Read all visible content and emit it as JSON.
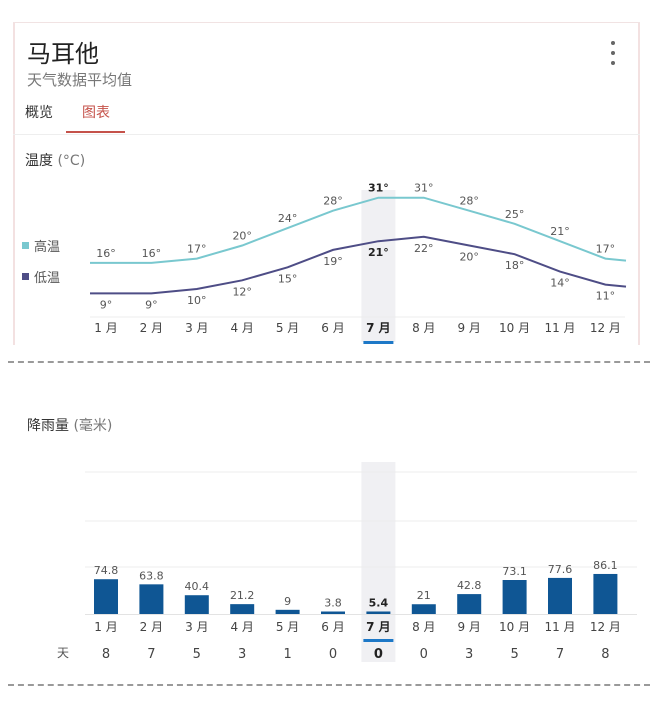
{
  "header": {
    "title": "马耳他",
    "subtitle": "天气数据平均值"
  },
  "tabs": [
    {
      "label": "概览",
      "active": false
    },
    {
      "label": "图表",
      "active": true
    }
  ],
  "temperature": {
    "label": "温度",
    "unit": "(°C)",
    "legend": [
      {
        "label": "高温",
        "color": "#79c8cf"
      },
      {
        "label": "低温",
        "color": "#4e4d86"
      }
    ]
  },
  "rainfall": {
    "label": "降雨量",
    "unit": "(毫米)",
    "days_label": "天"
  },
  "months": [
    "1 月",
    "2 月",
    "3 月",
    "4 月",
    "5 月",
    "6 月",
    "7 月",
    "8 月",
    "9 月",
    "10 月",
    "11 月",
    "12 月"
  ],
  "selected_month_index": 6,
  "colors": {
    "high_line": "#79c8cf",
    "low_line": "#4e4d86",
    "bar": "#0f5694",
    "accent": "#c5524a",
    "selection": "#1d78c7"
  },
  "chart_data": [
    {
      "type": "line",
      "categories": [
        "1 月",
        "2 月",
        "3 月",
        "4 月",
        "5 月",
        "6 月",
        "7 月",
        "8 月",
        "9 月",
        "10 月",
        "11 月",
        "12 月"
      ],
      "series": [
        {
          "name": "高温",
          "values": [
            16,
            16,
            17,
            20,
            24,
            28,
            31,
            31,
            28,
            25,
            21,
            17
          ]
        },
        {
          "name": "低温",
          "values": [
            9,
            9,
            10,
            12,
            15,
            19,
            21,
            22,
            20,
            18,
            14,
            11
          ]
        }
      ],
      "value_labels": {
        "high": [
          "16°",
          "16°",
          "17°",
          "20°",
          "24°",
          "28°",
          "31°",
          "31°",
          "28°",
          "25°",
          "21°",
          "17°"
        ],
        "low": [
          "9°",
          "9°",
          "10°",
          "12°",
          "15°",
          "19°",
          "21°",
          "22°",
          "20°",
          "18°",
          "14°",
          "11°"
        ]
      },
      "title": "温度",
      "ylabel": "(°C)"
    },
    {
      "type": "bar",
      "categories": [
        "1 月",
        "2 月",
        "3 月",
        "4 月",
        "5 月",
        "6 月",
        "7 月",
        "8 月",
        "9 月",
        "10 月",
        "11 月",
        "12 月"
      ],
      "values": [
        74.8,
        63.8,
        40.4,
        21.2,
        9,
        3.8,
        5.4,
        21,
        42.8,
        73.1,
        77.6,
        86.1
      ],
      "value_labels": [
        "74.8",
        "63.8",
        "40.4",
        "21.2",
        "9",
        "3.8",
        "5.4",
        "21",
        "42.8",
        "73.1",
        "77.6",
        "86.1"
      ],
      "rain_days": [
        "8",
        "7",
        "5",
        "3",
        "1",
        "0",
        "0",
        "0",
        "3",
        "5",
        "7",
        "8"
      ],
      "title": "降雨量",
      "ylabel": "(毫米)"
    }
  ]
}
